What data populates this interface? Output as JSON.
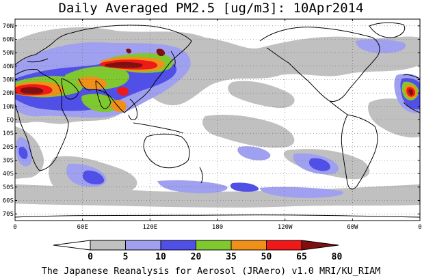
{
  "title": "Daily Averaged PM2.5 [ug/m3]: 10Apr2014",
  "footer": "The Japanese Reanalysis for Aerosol (JRAero) v1.0 MRI/KU_RIAM",
  "map": {
    "projection": "equirectangular",
    "lon_range": [
      0,
      360
    ],
    "lat_range": [
      -75,
      75
    ],
    "lat_labels": [
      "70N",
      "60N",
      "50N",
      "40N",
      "30N",
      "20N",
      "10N",
      "EQ",
      "10S",
      "20S",
      "30S",
      "40S",
      "50S",
      "60S",
      "70S"
    ],
    "lat_values": [
      70,
      60,
      50,
      40,
      30,
      20,
      10,
      0,
      -10,
      -20,
      -30,
      -40,
      -50,
      -60,
      -70
    ],
    "lon_labels": [
      "0",
      "60E",
      "120E",
      "180",
      "120W",
      "60W",
      "0"
    ],
    "lon_values": [
      0,
      60,
      120,
      180,
      240,
      300,
      360
    ],
    "grid": "dotted",
    "colors": {
      "background": "#ffffff",
      "coast": "#000000"
    }
  },
  "legend": {
    "levels": [
      "0",
      "5",
      "10",
      "20",
      "35",
      "50",
      "65",
      "80"
    ],
    "colors": [
      "#ffffff",
      "#c0c0c0",
      "#a0a0f0",
      "#5050e8",
      "#80c830",
      "#f09018",
      "#f01818",
      "#801010"
    ]
  }
}
